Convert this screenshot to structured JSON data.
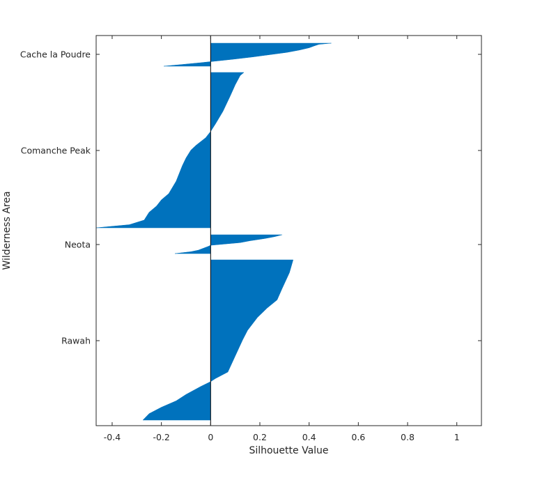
{
  "chart_data": {
    "type": "area",
    "title": "",
    "xlabel": "Silhouette Value",
    "ylabel": "Wilderness Area",
    "xlim": [
      -0.465,
      1.1
    ],
    "x_ticks": [
      -0.4,
      -0.2,
      0,
      0.2,
      0.4,
      0.6,
      0.8,
      1
    ],
    "x_tick_labels": [
      "-0.4",
      "-0.2",
      "0",
      "0.2",
      "0.4",
      "0.6",
      "0.8",
      "1"
    ],
    "grid": false,
    "legend": "none",
    "fill_color": "#0072BD",
    "clusters": [
      {
        "name": "Cache la Poudre",
        "min": -0.19,
        "max": 0.49,
        "profile": [
          [
            0,
            0.49
          ],
          [
            0.05,
            0.44
          ],
          [
            0.12,
            0.42
          ],
          [
            0.2,
            0.4
          ],
          [
            0.3,
            0.36
          ],
          [
            0.4,
            0.31
          ],
          [
            0.5,
            0.24
          ],
          [
            0.6,
            0.17
          ],
          [
            0.7,
            0.09
          ],
          [
            0.78,
            0.02
          ],
          [
            0.85,
            -0.04
          ],
          [
            0.93,
            -0.12
          ],
          [
            1.0,
            -0.19
          ]
        ]
      },
      {
        "name": "Comanche Peak",
        "min": -0.465,
        "max": 0.135,
        "profile": [
          [
            0,
            0.135
          ],
          [
            0.02,
            0.12
          ],
          [
            0.08,
            0.1
          ],
          [
            0.15,
            0.08
          ],
          [
            0.25,
            0.05
          ],
          [
            0.33,
            0.02
          ],
          [
            0.38,
            0.0
          ],
          [
            0.42,
            -0.02
          ],
          [
            0.47,
            -0.06
          ],
          [
            0.5,
            -0.08
          ],
          [
            0.55,
            -0.1
          ],
          [
            0.6,
            -0.115
          ],
          [
            0.7,
            -0.14
          ],
          [
            0.78,
            -0.17
          ],
          [
            0.82,
            -0.2
          ],
          [
            0.86,
            -0.22
          ],
          [
            0.9,
            -0.25
          ],
          [
            0.95,
            -0.27
          ],
          [
            0.98,
            -0.33
          ],
          [
            1.0,
            -0.465
          ]
        ]
      },
      {
        "name": "Neota",
        "min": -0.145,
        "max": 0.29,
        "profile": [
          [
            0,
            0.29
          ],
          [
            0.1,
            0.26
          ],
          [
            0.2,
            0.22
          ],
          [
            0.32,
            0.16
          ],
          [
            0.42,
            0.12
          ],
          [
            0.5,
            0.05
          ],
          [
            0.56,
            0.0
          ],
          [
            0.62,
            -0.01
          ],
          [
            0.72,
            -0.03
          ],
          [
            0.82,
            -0.05
          ],
          [
            0.9,
            -0.08
          ],
          [
            1.0,
            -0.145
          ]
        ]
      },
      {
        "name": "Rawah",
        "min": -0.275,
        "max": 0.335,
        "profile": [
          [
            0,
            0.335
          ],
          [
            0.08,
            0.32
          ],
          [
            0.18,
            0.29
          ],
          [
            0.25,
            0.27
          ],
          [
            0.3,
            0.23
          ],
          [
            0.36,
            0.19
          ],
          [
            0.44,
            0.15
          ],
          [
            0.5,
            0.13
          ],
          [
            0.6,
            0.1
          ],
          [
            0.7,
            0.07
          ],
          [
            0.74,
            0.02
          ],
          [
            0.76,
            0.0
          ],
          [
            0.79,
            -0.04
          ],
          [
            0.84,
            -0.1
          ],
          [
            0.88,
            -0.14
          ],
          [
            0.92,
            -0.2
          ],
          [
            0.96,
            -0.25
          ],
          [
            1.0,
            -0.275
          ]
        ]
      }
    ]
  }
}
